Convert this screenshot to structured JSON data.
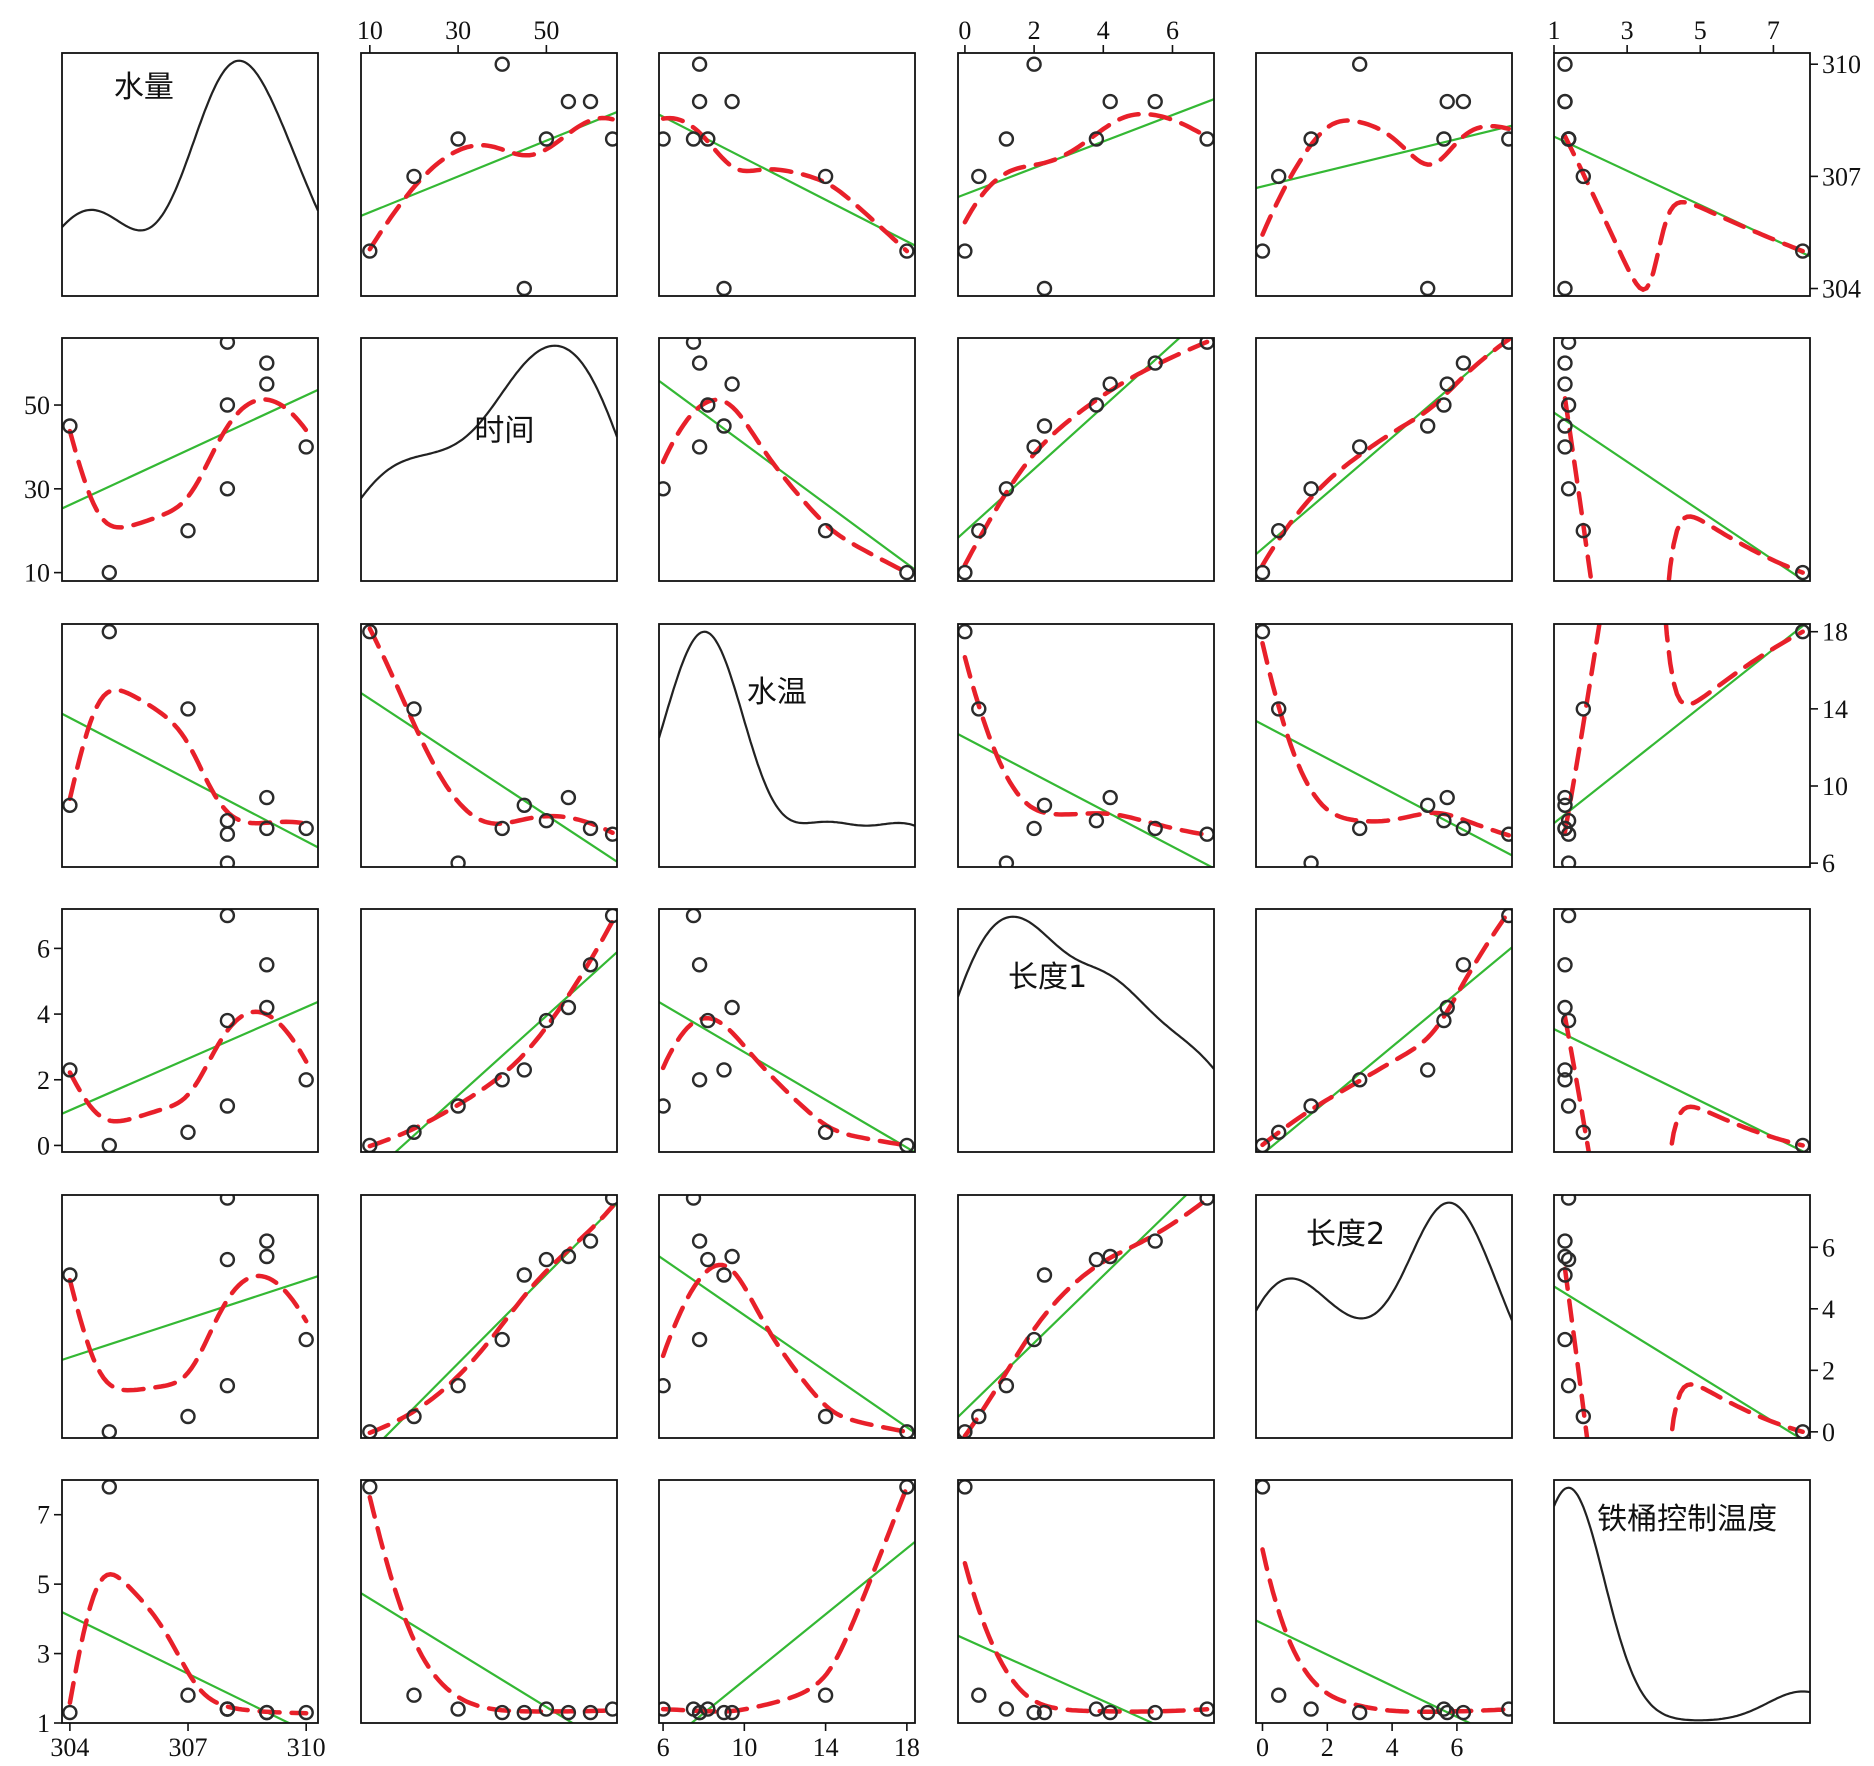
{
  "chart_data": {
    "type": "scatter",
    "subtype": "scatterplot-matrix",
    "variables": [
      "水量",
      "时间",
      "水温",
      "长度1",
      "长度2",
      "铁桶控制温度"
    ],
    "ranges": {
      "水量": [
        303.8,
        310.3
      ],
      "时间": [
        8,
        66
      ],
      "水温": [
        5.8,
        18.4
      ],
      "长度1": [
        -0.2,
        7.2
      ],
      "长度2": [
        -0.2,
        7.7
      ],
      "铁桶控制温度": [
        1.0,
        8.0
      ]
    },
    "ticks": {
      "水量": [
        "304",
        "307",
        "310"
      ],
      "时间": [
        "10",
        "30",
        "50"
      ],
      "水温": [
        "6",
        "10",
        "14",
        "18"
      ],
      "长度1": [
        "0",
        "2",
        "4",
        "6"
      ],
      "长度2": [
        "0",
        "2",
        "4",
        "6"
      ],
      "铁桶控制温度": [
        "1",
        "3",
        "5",
        "7"
      ]
    },
    "observations": [
      {
        "水量": 304,
        "时间": 45,
        "水温": 9.0,
        "长度1": 2.3,
        "长度2": 5.1,
        "铁桶控制温度": 1.3
      },
      {
        "水量": 305,
        "时间": 10,
        "水温": 18.0,
        "长度1": 0.0,
        "长度2": 0.0,
        "铁桶控制温度": 7.8
      },
      {
        "水量": 307,
        "时间": 20,
        "水温": 14.0,
        "长度1": 0.4,
        "长度2": 0.5,
        "铁桶控制温度": 1.8
      },
      {
        "水量": 308,
        "时间": 65,
        "水温": 7.5,
        "长度1": 7.0,
        "长度2": 7.6,
        "铁桶控制温度": 1.4
      },
      {
        "水量": 308,
        "时间": 50,
        "水温": 8.2,
        "长度1": 3.8,
        "长度2": 5.6,
        "铁桶控制温度": 1.4
      },
      {
        "水量": 308,
        "时间": 30,
        "水温": 6.0,
        "长度1": 1.2,
        "长度2": 1.5,
        "铁桶控制温度": 1.4
      },
      {
        "水量": 309,
        "时间": 55,
        "水温": 9.4,
        "长度1": 4.2,
        "长度2": 5.7,
        "铁桶控制温度": 1.3
      },
      {
        "水量": 309,
        "时间": 60,
        "水温": 7.8,
        "长度1": 5.5,
        "长度2": 6.2,
        "铁桶控制温度": 1.3
      },
      {
        "水量": 310,
        "时间": 40,
        "水温": 7.8,
        "长度1": 2.0,
        "长度2": 3.0,
        "铁桶控制温度": 1.3
      }
    ],
    "series": [
      {
        "name": "",
        "style": "scatter points",
        "color": "#2b2b2b"
      },
      {
        "name": "",
        "style": "linear fit",
        "color": "#34b834"
      },
      {
        "name": "",
        "style": "smooth fit (dashed)",
        "color": "#e8202a"
      },
      {
        "name": "",
        "style": "density curve (diagonal)",
        "color": "#222222"
      }
    ],
    "grid": false,
    "legend": "none"
  },
  "colors": {
    "points": "#2b2b2b",
    "linear_fit": "#34b834",
    "smooth_fit": "#e8202a",
    "density": "#222222",
    "panel_border": "#111111"
  }
}
